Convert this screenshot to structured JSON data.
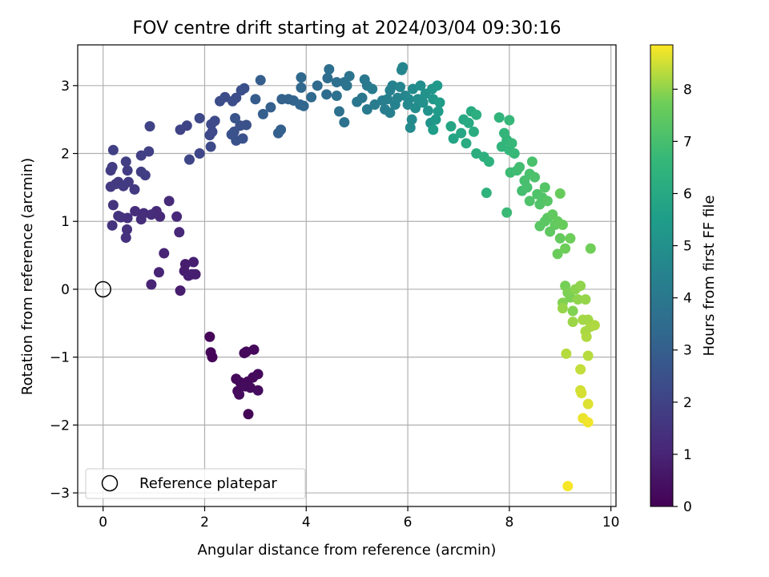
{
  "chart_data": {
    "type": "scatter",
    "title": "FOV centre drift starting at 2024/03/04 09:30:16",
    "xlabel": "Angular distance from reference (arcmin)",
    "ylabel": "Rotation from reference (arcmin)",
    "colorbar_label": "Hours from first FF file",
    "colormap": "viridis",
    "xlim": [
      -0.5,
      10.1
    ],
    "ylim": [
      -3.2,
      3.6
    ],
    "xticks": [
      0,
      2,
      4,
      6,
      8,
      10
    ],
    "yticks": [
      -3,
      -2,
      -1,
      0,
      1,
      2,
      3
    ],
    "colorbar_range": [
      0,
      8.85
    ],
    "colorbar_ticks": [
      0,
      1,
      2,
      3,
      4,
      5,
      6,
      7,
      8
    ],
    "grid": true,
    "legend": {
      "position": "lower-left",
      "label": "Reference platepar"
    },
    "reference_point": {
      "x": 0,
      "y": 0
    },
    "points": [
      [
        2.1,
        -0.7,
        0.15
      ],
      [
        2.12,
        -0.93,
        0.15
      ],
      [
        2.15,
        -1.0,
        0.15
      ],
      [
        2.78,
        -0.94,
        0.2
      ],
      [
        2.82,
        -0.92,
        0.2
      ],
      [
        2.97,
        -0.89,
        0.2
      ],
      [
        2.62,
        -1.32,
        0.2
      ],
      [
        2.7,
        -1.37,
        0.25
      ],
      [
        2.85,
        -1.36,
        0.25
      ],
      [
        2.95,
        -1.3,
        0.25
      ],
      [
        3.05,
        -1.25,
        0.25
      ],
      [
        2.65,
        -1.5,
        0.25
      ],
      [
        2.68,
        -1.55,
        0.3
      ],
      [
        2.8,
        -1.43,
        0.3
      ],
      [
        2.9,
        -1.45,
        0.3
      ],
      [
        3.05,
        -1.49,
        0.3
      ],
      [
        2.86,
        -1.84,
        0.1
      ],
      [
        1.52,
        -0.02,
        0.8
      ],
      [
        1.6,
        0.27,
        0.8
      ],
      [
        1.62,
        0.37,
        0.8
      ],
      [
        1.68,
        0.2,
        0.85
      ],
      [
        1.75,
        0.22,
        0.85
      ],
      [
        1.78,
        0.4,
        0.85
      ],
      [
        1.82,
        0.22,
        0.85
      ],
      [
        1.2,
        0.53,
        1.0
      ],
      [
        1.1,
        0.25,
        1.0
      ],
      [
        0.95,
        0.07,
        1.0
      ],
      [
        1.5,
        0.84,
        1.1
      ],
      [
        1.45,
        1.07,
        1.15
      ],
      [
        1.3,
        1.3,
        1.2
      ],
      [
        1.12,
        1.07,
        1.2
      ],
      [
        1.05,
        1.15,
        1.2
      ],
      [
        0.95,
        1.1,
        1.3
      ],
      [
        0.75,
        1.03,
        1.3
      ],
      [
        0.8,
        1.12,
        1.3
      ],
      [
        0.63,
        1.15,
        1.3
      ],
      [
        0.45,
        0.76,
        1.4
      ],
      [
        0.47,
        0.88,
        1.4
      ],
      [
        0.48,
        1.05,
        1.4
      ],
      [
        0.35,
        1.06,
        1.4
      ],
      [
        0.3,
        1.08,
        1.5
      ],
      [
        0.2,
        1.24,
        1.5
      ],
      [
        0.18,
        0.94,
        1.5
      ],
      [
        0.15,
        1.51,
        1.7
      ],
      [
        0.25,
        1.55,
        1.7
      ],
      [
        0.3,
        1.58,
        1.7
      ],
      [
        0.4,
        1.52,
        1.75
      ],
      [
        0.5,
        1.58,
        1.75
      ],
      [
        0.62,
        1.47,
        1.75
      ],
      [
        0.15,
        1.75,
        1.8
      ],
      [
        0.18,
        1.8,
        1.8
      ],
      [
        0.48,
        1.75,
        1.8
      ],
      [
        0.75,
        1.73,
        1.85
      ],
      [
        0.83,
        1.68,
        1.85
      ],
      [
        0.45,
        1.88,
        1.85
      ],
      [
        0.75,
        1.97,
        1.9
      ],
      [
        0.2,
        2.05,
        1.9
      ],
      [
        0.9,
        2.03,
        1.9
      ],
      [
        0.92,
        2.4,
        2.0
      ],
      [
        1.52,
        2.35,
        2.05
      ],
      [
        1.65,
        2.41,
        2.05
      ],
      [
        1.7,
        1.91,
        2.1
      ],
      [
        1.9,
        2.0,
        2.15
      ],
      [
        1.9,
        2.52,
        2.2
      ],
      [
        2.12,
        2.1,
        2.2
      ],
      [
        2.1,
        2.27,
        2.2
      ],
      [
        2.15,
        2.32,
        2.25
      ],
      [
        2.13,
        2.43,
        2.25
      ],
      [
        2.2,
        2.48,
        2.25
      ],
      [
        2.3,
        2.77,
        2.35
      ],
      [
        2.4,
        2.83,
        2.35
      ],
      [
        2.55,
        2.77,
        2.4
      ],
      [
        2.62,
        2.82,
        2.4
      ],
      [
        2.72,
        2.93,
        2.45
      ],
      [
        2.78,
        2.96,
        2.45
      ],
      [
        2.7,
        2.41,
        2.5
      ],
      [
        2.82,
        2.42,
        2.5
      ],
      [
        2.58,
        2.32,
        2.5
      ],
      [
        2.53,
        2.28,
        2.55
      ],
      [
        2.62,
        2.19,
        2.55
      ],
      [
        2.75,
        2.22,
        2.55
      ],
      [
        2.6,
        2.52,
        2.6
      ],
      [
        3.0,
        2.8,
        2.9
      ],
      [
        3.1,
        3.08,
        2.95
      ],
      [
        3.15,
        2.58,
        3.0
      ],
      [
        3.3,
        2.68,
        3.0
      ],
      [
        3.45,
        2.3,
        3.05
      ],
      [
        3.5,
        2.35,
        3.05
      ],
      [
        3.52,
        2.8,
        3.1
      ],
      [
        3.65,
        2.8,
        3.15
      ],
      [
        3.75,
        2.78,
        3.2
      ],
      [
        3.88,
        2.72,
        3.25
      ],
      [
        3.95,
        2.7,
        3.3
      ],
      [
        3.9,
        2.97,
        3.35
      ],
      [
        3.9,
        3.12,
        3.35
      ],
      [
        4.1,
        2.83,
        3.4
      ],
      [
        4.22,
        3.0,
        3.45
      ],
      [
        4.4,
        2.87,
        3.5
      ],
      [
        4.42,
        3.11,
        3.55
      ],
      [
        4.45,
        3.24,
        3.6
      ],
      [
        4.6,
        3.05,
        3.65
      ],
      [
        4.6,
        2.85,
        3.7
      ],
      [
        4.65,
        2.62,
        3.7
      ],
      [
        4.75,
        2.46,
        3.75
      ],
      [
        4.75,
        3.05,
        3.75
      ],
      [
        4.8,
        3.0,
        3.8
      ],
      [
        4.85,
        3.14,
        3.85
      ],
      [
        5.0,
        2.76,
        3.9
      ],
      [
        5.1,
        2.82,
        3.95
      ],
      [
        5.15,
        3.09,
        4.0
      ],
      [
        5.2,
        3.0,
        4.05
      ],
      [
        5.2,
        2.65,
        4.1
      ],
      [
        5.3,
        2.95,
        4.15
      ],
      [
        5.35,
        2.72,
        4.15
      ],
      [
        5.5,
        2.78,
        4.2
      ],
      [
        5.55,
        2.65,
        4.2
      ],
      [
        5.65,
        2.6,
        4.3
      ],
      [
        5.6,
        2.8,
        4.3
      ],
      [
        5.65,
        2.93,
        4.35
      ],
      [
        5.7,
        3.0,
        4.4
      ],
      [
        5.75,
        2.72,
        4.4
      ],
      [
        5.8,
        2.82,
        4.45
      ],
      [
        5.85,
        2.98,
        4.5
      ],
      [
        5.88,
        3.23,
        4.55
      ],
      [
        5.9,
        3.27,
        4.55
      ],
      [
        5.95,
        2.85,
        4.6
      ],
      [
        6.0,
        2.72,
        4.65
      ],
      [
        6.02,
        2.8,
        4.7
      ],
      [
        6.05,
        2.38,
        4.75
      ],
      [
        6.08,
        2.5,
        4.75
      ],
      [
        6.1,
        2.95,
        4.8
      ],
      [
        6.15,
        2.67,
        4.85
      ],
      [
        6.2,
        2.8,
        4.9
      ],
      [
        6.25,
        3.0,
        4.95
      ],
      [
        6.3,
        2.75,
        5.0
      ],
      [
        6.35,
        2.88,
        5.05
      ],
      [
        6.4,
        2.63,
        5.1
      ],
      [
        6.45,
        2.45,
        5.15
      ],
      [
        6.48,
        2.95,
        5.2
      ],
      [
        6.5,
        2.8,
        5.25
      ],
      [
        6.55,
        2.5,
        5.3
      ],
      [
        6.58,
        3.0,
        5.35
      ],
      [
        6.6,
        2.62,
        5.4
      ],
      [
        6.63,
        2.75,
        5.45
      ],
      [
        6.5,
        2.35,
        5.5
      ],
      [
        6.9,
        2.22,
        5.8
      ],
      [
        6.85,
        2.4,
        5.85
      ],
      [
        7.05,
        2.3,
        5.9
      ],
      [
        7.1,
        2.5,
        5.95
      ],
      [
        7.2,
        2.45,
        6.0
      ],
      [
        7.25,
        2.62,
        6.05
      ],
      [
        7.15,
        2.15,
        6.1
      ],
      [
        7.3,
        2.32,
        6.15
      ],
      [
        7.35,
        2.0,
        6.2
      ],
      [
        7.35,
        2.57,
        6.25
      ],
      [
        7.5,
        1.95,
        6.3
      ],
      [
        7.6,
        1.88,
        6.35
      ],
      [
        7.55,
        1.42,
        6.4
      ],
      [
        7.8,
        2.53,
        6.45
      ],
      [
        7.85,
        2.1,
        6.5
      ],
      [
        7.9,
        2.3,
        6.55
      ],
      [
        7.95,
        2.2,
        6.55
      ],
      [
        8.0,
        2.05,
        6.6
      ],
      [
        8.0,
        2.49,
        6.65
      ],
      [
        8.05,
        2.15,
        6.65
      ],
      [
        8.1,
        2.0,
        6.7
      ],
      [
        7.95,
        1.13,
        6.75
      ],
      [
        8.02,
        1.72,
        6.8
      ],
      [
        8.15,
        1.75,
        6.85
      ],
      [
        8.2,
        1.8,
        6.9
      ],
      [
        8.25,
        1.45,
        6.95
      ],
      [
        8.3,
        1.6,
        7.0
      ],
      [
        8.35,
        1.5,
        7.0
      ],
      [
        8.4,
        1.7,
        7.05
      ],
      [
        8.45,
        1.88,
        7.05
      ],
      [
        8.5,
        1.65,
        7.1
      ],
      [
        8.4,
        1.3,
        7.15
      ],
      [
        8.55,
        1.4,
        7.15
      ],
      [
        8.6,
        1.25,
        7.2
      ],
      [
        8.65,
        1.35,
        7.2
      ],
      [
        8.7,
        1.5,
        7.25
      ],
      [
        8.75,
        1.3,
        7.3
      ],
      [
        8.6,
        0.93,
        7.35
      ],
      [
        8.7,
        1.0,
        7.4
      ],
      [
        8.75,
        1.05,
        7.4
      ],
      [
        8.8,
        0.85,
        7.45
      ],
      [
        8.85,
        1.1,
        7.5
      ],
      [
        8.9,
        0.95,
        7.5
      ],
      [
        8.95,
        1.0,
        7.55
      ],
      [
        9.0,
        0.75,
        7.55
      ],
      [
        9.05,
        0.95,
        7.6
      ],
      [
        9.0,
        1.41,
        7.6
      ],
      [
        8.95,
        0.52,
        7.65
      ],
      [
        9.2,
        0.75,
        7.7
      ],
      [
        9.1,
        0.6,
        7.7
      ],
      [
        9.6,
        0.6,
        7.75
      ],
      [
        9.1,
        0.05,
        7.8
      ],
      [
        9.15,
        -0.05,
        7.85
      ],
      [
        9.2,
        -0.12,
        7.85
      ],
      [
        9.05,
        -0.2,
        7.9
      ],
      [
        9.25,
        -0.32,
        7.9
      ],
      [
        9.3,
        0.0,
        7.95
      ],
      [
        9.35,
        -0.15,
        8.0
      ],
      [
        9.4,
        0.05,
        8.0
      ],
      [
        9.5,
        -0.15,
        8.05
      ],
      [
        9.05,
        -0.28,
        8.05
      ],
      [
        9.25,
        -0.48,
        8.1
      ],
      [
        9.45,
        -0.45,
        8.15
      ],
      [
        9.55,
        -0.45,
        8.15
      ],
      [
        9.5,
        -0.62,
        8.2
      ],
      [
        9.6,
        -0.55,
        8.2
      ],
      [
        9.68,
        -0.53,
        8.25
      ],
      [
        9.52,
        -0.7,
        8.25
      ],
      [
        9.55,
        -0.98,
        8.3
      ],
      [
        9.12,
        -0.95,
        8.3
      ],
      [
        9.4,
        -1.18,
        8.4
      ],
      [
        9.4,
        -1.49,
        8.5
      ],
      [
        9.42,
        -1.53,
        8.55
      ],
      [
        9.55,
        -1.69,
        8.6
      ],
      [
        9.45,
        -1.9,
        8.7
      ],
      [
        9.55,
        -1.96,
        8.75
      ],
      [
        9.15,
        -2.9,
        8.8
      ]
    ]
  }
}
